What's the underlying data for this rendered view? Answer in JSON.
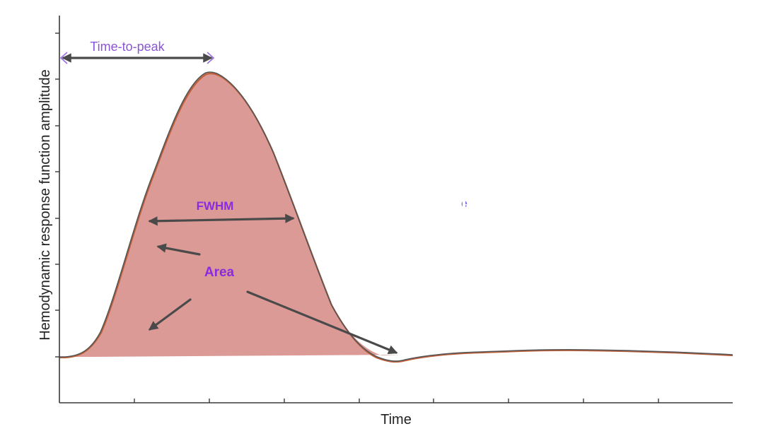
{
  "figure": {
    "xlabel": "Time",
    "ylabel": "Hemodynamic response function amplitude",
    "colors": {
      "area_fill": "#dc9a96",
      "curve": "#c0603a",
      "curve_outline": "#555555",
      "annotation": "#8a2be2",
      "time_to_peak_text": "#8a55d6",
      "arrow": "#4a4a4a",
      "axis": "#3a3a3a"
    },
    "annotations": {
      "time_to_peak": "Time-to-peak",
      "fwhm": "FWHM",
      "area": "Area",
      "stray_glyph": "e"
    }
  }
}
